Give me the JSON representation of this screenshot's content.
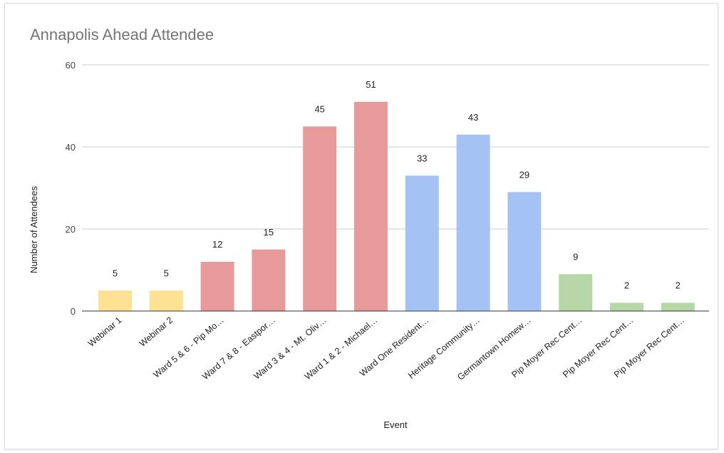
{
  "chart_data": {
    "type": "bar",
    "title": "Annapolis Ahead Attendee",
    "xlabel": "Event",
    "ylabel": "Number of Attendees",
    "ylim": [
      0,
      60
    ],
    "yticks": [
      0,
      20,
      40,
      60
    ],
    "grid": true,
    "categories": [
      "Webinar 1",
      "Webinar 2",
      "Ward 5 & 6 - Pip Mo…",
      "Ward 7 & 8 - Eastpor…",
      "Ward 3 & 4 - Mt. Oliv…",
      "Ward 1 & 2 - Michael…",
      "Ward One Resident…",
      "Heritage Community…",
      "Germantown Homew…",
      "Pip Moyer Rec Cent…",
      "Pip Moyer Rec Cent…",
      "Pip Moyer Rec Cent…"
    ],
    "values": [
      5,
      5,
      12,
      15,
      45,
      51,
      33,
      43,
      29,
      9,
      2,
      2
    ],
    "colors": [
      "#fde293",
      "#fde293",
      "#e89a9a",
      "#e89a9a",
      "#e89a9a",
      "#e89a9a",
      "#a4c2f4",
      "#a4c2f4",
      "#a4c2f4",
      "#b6d7a8",
      "#b6d7a8",
      "#b6d7a8"
    ]
  }
}
